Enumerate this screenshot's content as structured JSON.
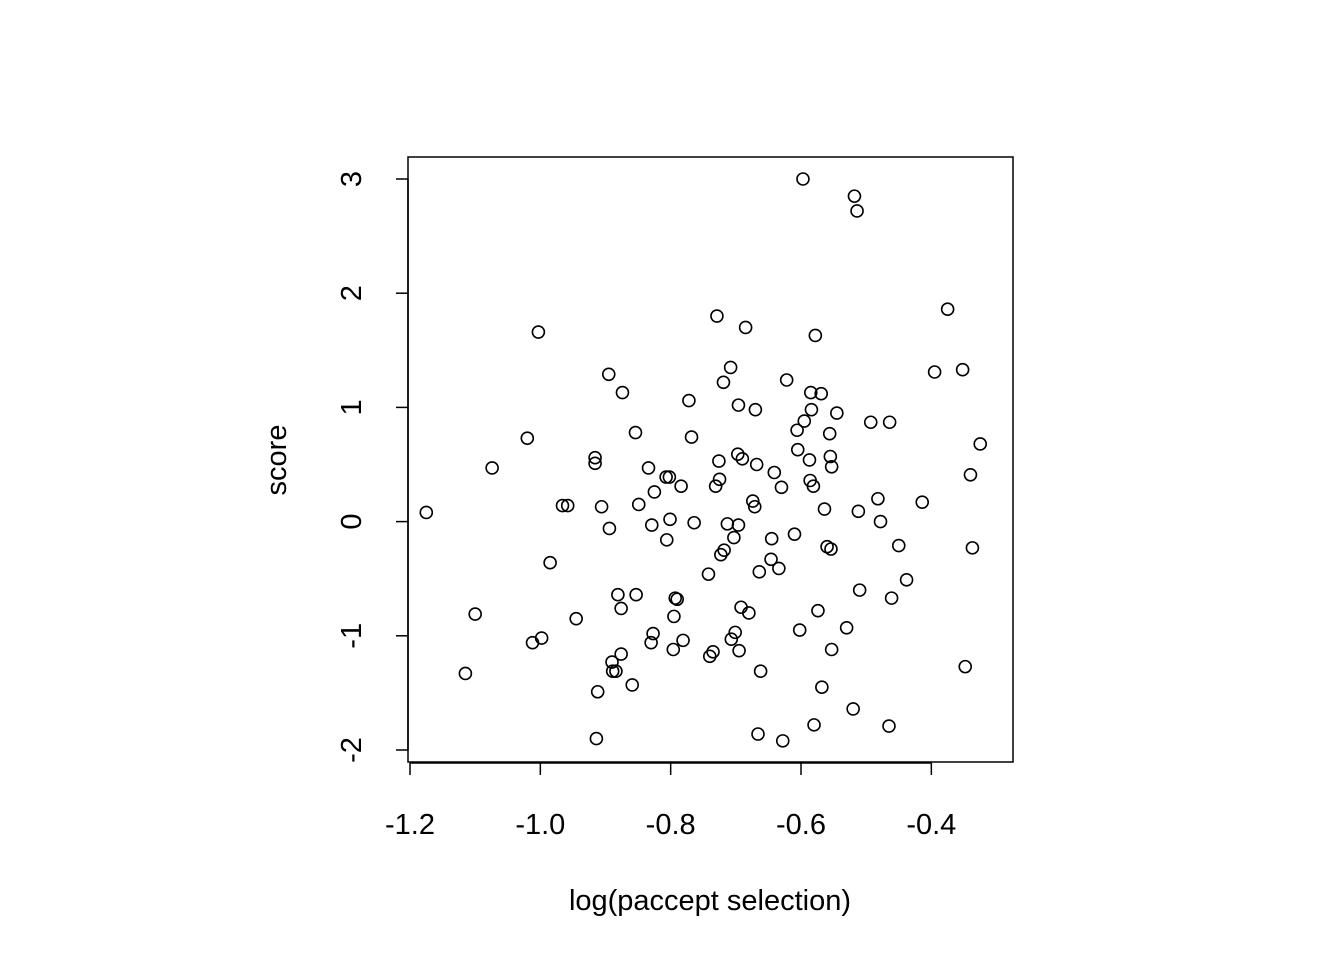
{
  "chart_data": {
    "type": "scatter",
    "title": "",
    "xlabel": "log(paccept selection)",
    "ylabel": "score",
    "xlim": [
      -1.2,
      -0.31
    ],
    "ylim": [
      -2,
      3
    ],
    "xticks": [
      -1.2,
      -1.0,
      -0.8,
      -0.6,
      -0.4
    ],
    "xtick_labels": [
      "-1.2",
      "-1.0",
      "-0.8",
      "-0.6",
      "-0.4"
    ],
    "yticks": [
      -2,
      -1,
      0,
      1,
      2,
      3
    ],
    "ytick_labels": [
      "-2",
      "-1",
      "0",
      "1",
      "2",
      "3"
    ],
    "grid": false,
    "legend": "none",
    "marker": "open-circle",
    "colors": {
      "points": "#000000",
      "axes": "#000000",
      "background": "#ffffff"
    },
    "points": [
      {
        "x": -1.175,
        "y": 0.08
      },
      {
        "x": -1.115,
        "y": -1.33
      },
      {
        "x": -1.1,
        "y": -0.81
      },
      {
        "x": -1.074,
        "y": 0.47
      },
      {
        "x": -1.02,
        "y": 0.73
      },
      {
        "x": -1.012,
        "y": -1.06
      },
      {
        "x": -1.003,
        "y": 1.66
      },
      {
        "x": -0.998,
        "y": -1.02
      },
      {
        "x": -0.985,
        "y": -0.36
      },
      {
        "x": -0.966,
        "y": 0.14
      },
      {
        "x": -0.958,
        "y": 0.14
      },
      {
        "x": -0.945,
        "y": -0.85
      },
      {
        "x": -0.916,
        "y": 0.56
      },
      {
        "x": -0.916,
        "y": 0.51
      },
      {
        "x": -0.914,
        "y": -1.9
      },
      {
        "x": -0.912,
        "y": -1.49
      },
      {
        "x": -0.906,
        "y": 0.13
      },
      {
        "x": -0.895,
        "y": 1.29
      },
      {
        "x": -0.894,
        "y": -0.06
      },
      {
        "x": -0.89,
        "y": -1.23
      },
      {
        "x": -0.889,
        "y": -1.31
      },
      {
        "x": -0.884,
        "y": -1.31
      },
      {
        "x": -0.881,
        "y": -0.64
      },
      {
        "x": -0.876,
        "y": -0.76
      },
      {
        "x": -0.876,
        "y": -1.16
      },
      {
        "x": -0.874,
        "y": 1.13
      },
      {
        "x": -0.859,
        "y": -1.43
      },
      {
        "x": -0.854,
        "y": 0.78
      },
      {
        "x": -0.853,
        "y": -0.64
      },
      {
        "x": -0.849,
        "y": 0.15
      },
      {
        "x": -0.834,
        "y": 0.47
      },
      {
        "x": -0.83,
        "y": -1.06
      },
      {
        "x": -0.829,
        "y": -0.03
      },
      {
        "x": -0.827,
        "y": -0.98
      },
      {
        "x": -0.825,
        "y": 0.26
      },
      {
        "x": -0.807,
        "y": 0.39
      },
      {
        "x": -0.806,
        "y": -0.16
      },
      {
        "x": -0.802,
        "y": 0.39
      },
      {
        "x": -0.801,
        "y": 0.02
      },
      {
        "x": -0.796,
        "y": -1.12
      },
      {
        "x": -0.795,
        "y": -0.83
      },
      {
        "x": -0.793,
        "y": -0.67
      },
      {
        "x": -0.79,
        "y": -0.68
      },
      {
        "x": -0.784,
        "y": 0.31
      },
      {
        "x": -0.781,
        "y": -1.04
      },
      {
        "x": -0.772,
        "y": 1.06
      },
      {
        "x": -0.768,
        "y": 0.74
      },
      {
        "x": -0.764,
        "y": -0.01
      },
      {
        "x": -0.742,
        "y": -0.46
      },
      {
        "x": -0.74,
        "y": -1.18
      },
      {
        "x": -0.735,
        "y": -1.14
      },
      {
        "x": -0.731,
        "y": 0.31
      },
      {
        "x": -0.729,
        "y": 1.8
      },
      {
        "x": -0.726,
        "y": 0.53
      },
      {
        "x": -0.725,
        "y": 0.37
      },
      {
        "x": -0.723,
        "y": -0.29
      },
      {
        "x": -0.719,
        "y": 1.22
      },
      {
        "x": -0.718,
        "y": -0.25
      },
      {
        "x": -0.713,
        "y": -0.02
      },
      {
        "x": -0.708,
        "y": 1.35
      },
      {
        "x": -0.707,
        "y": -1.03
      },
      {
        "x": -0.703,
        "y": -0.14
      },
      {
        "x": -0.701,
        "y": -0.97
      },
      {
        "x": -0.697,
        "y": 0.59
      },
      {
        "x": -0.696,
        "y": -0.03
      },
      {
        "x": -0.696,
        "y": 1.02
      },
      {
        "x": -0.695,
        "y": -1.13
      },
      {
        "x": -0.692,
        "y": -0.75
      },
      {
        "x": -0.69,
        "y": 0.55
      },
      {
        "x": -0.685,
        "y": 1.7
      },
      {
        "x": -0.68,
        "y": -0.8
      },
      {
        "x": -0.674,
        "y": 0.18
      },
      {
        "x": -0.671,
        "y": 0.13
      },
      {
        "x": -0.67,
        "y": 0.98
      },
      {
        "x": -0.668,
        "y": 0.5
      },
      {
        "x": -0.666,
        "y": -1.86
      },
      {
        "x": -0.664,
        "y": -0.44
      },
      {
        "x": -0.662,
        "y": -1.31
      },
      {
        "x": -0.646,
        "y": -0.33
      },
      {
        "x": -0.645,
        "y": -0.15
      },
      {
        "x": -0.641,
        "y": 0.43
      },
      {
        "x": -0.634,
        "y": -0.41
      },
      {
        "x": -0.63,
        "y": 0.3
      },
      {
        "x": -0.628,
        "y": -1.92
      },
      {
        "x": -0.622,
        "y": 1.24
      },
      {
        "x": -0.61,
        "y": -0.11
      },
      {
        "x": -0.606,
        "y": 0.8
      },
      {
        "x": -0.605,
        "y": 0.63
      },
      {
        "x": -0.602,
        "y": -0.95
      },
      {
        "x": -0.597,
        "y": 3.0
      },
      {
        "x": -0.595,
        "y": 0.88
      },
      {
        "x": -0.587,
        "y": 0.54
      },
      {
        "x": -0.586,
        "y": 0.36
      },
      {
        "x": -0.585,
        "y": 1.13
      },
      {
        "x": -0.584,
        "y": 0.98
      },
      {
        "x": -0.581,
        "y": 0.31
      },
      {
        "x": -0.58,
        "y": -1.78
      },
      {
        "x": -0.578,
        "y": 1.63
      },
      {
        "x": -0.574,
        "y": -0.78
      },
      {
        "x": -0.569,
        "y": 1.12
      },
      {
        "x": -0.568,
        "y": -1.45
      },
      {
        "x": -0.564,
        "y": 0.11
      },
      {
        "x": -0.56,
        "y": -0.22
      },
      {
        "x": -0.556,
        "y": 0.77
      },
      {
        "x": -0.555,
        "y": 0.57
      },
      {
        "x": -0.554,
        "y": -0.24
      },
      {
        "x": -0.553,
        "y": -1.12
      },
      {
        "x": -0.553,
        "y": 0.48
      },
      {
        "x": -0.545,
        "y": 0.95
      },
      {
        "x": -0.53,
        "y": -0.93
      },
      {
        "x": -0.52,
        "y": -1.64
      },
      {
        "x": -0.518,
        "y": 2.85
      },
      {
        "x": -0.514,
        "y": 2.72
      },
      {
        "x": -0.512,
        "y": 0.09
      },
      {
        "x": -0.51,
        "y": -0.6
      },
      {
        "x": -0.493,
        "y": 0.87
      },
      {
        "x": -0.482,
        "y": 0.2
      },
      {
        "x": -0.478,
        "y": 0.0
      },
      {
        "x": -0.465,
        "y": -1.79
      },
      {
        "x": -0.464,
        "y": 0.87
      },
      {
        "x": -0.461,
        "y": -0.67
      },
      {
        "x": -0.45,
        "y": -0.21
      },
      {
        "x": -0.438,
        "y": -0.51
      },
      {
        "x": -0.414,
        "y": 0.17
      },
      {
        "x": -0.395,
        "y": 1.31
      },
      {
        "x": -0.375,
        "y": 1.86
      },
      {
        "x": -0.352,
        "y": 1.33
      },
      {
        "x": -0.348,
        "y": -1.27
      },
      {
        "x": -0.34,
        "y": 0.41
      },
      {
        "x": -0.337,
        "y": -0.23
      },
      {
        "x": -0.325,
        "y": 0.68
      }
    ]
  }
}
